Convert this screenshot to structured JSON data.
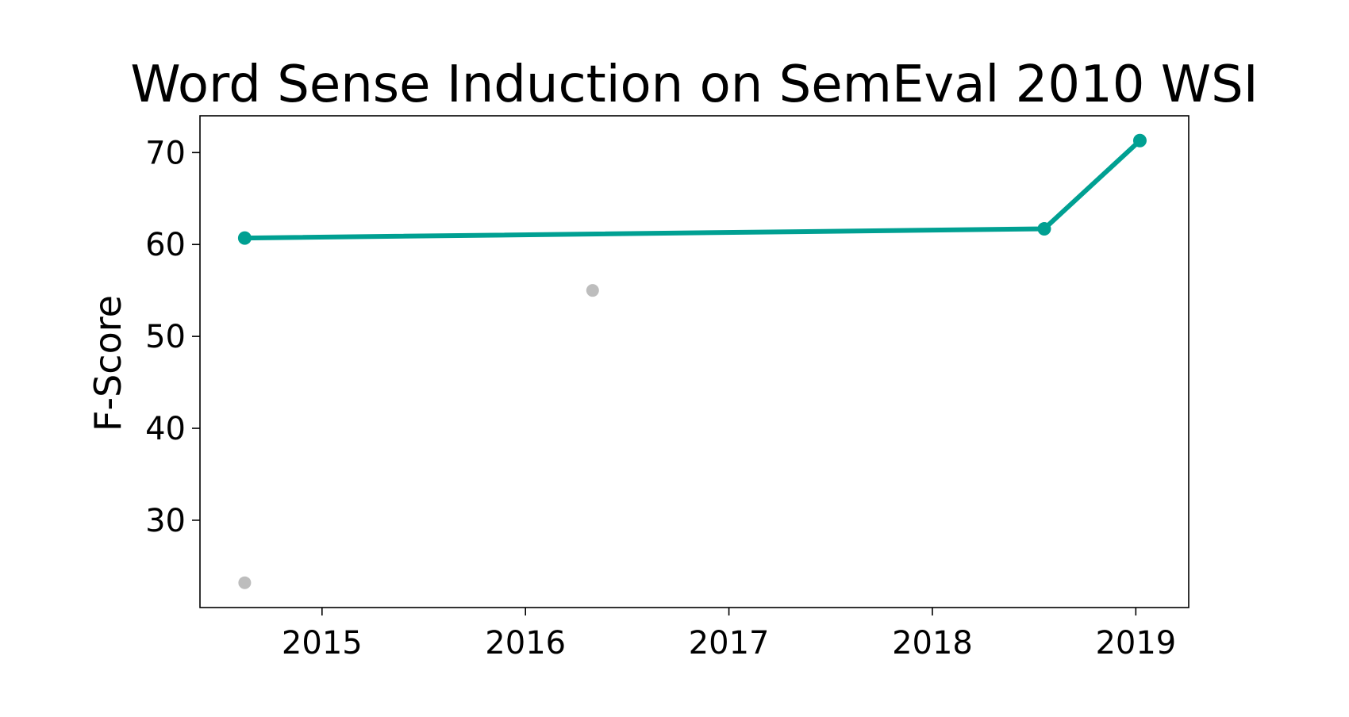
{
  "chart_data": {
    "type": "line",
    "title": "Word Sense Induction on SemEval 2010 WSI",
    "xlabel": "",
    "ylabel": "F-Score",
    "x_ticks": [
      2015,
      2016,
      2017,
      2018,
      2019
    ],
    "y_ticks": [
      30,
      40,
      50,
      60,
      70
    ],
    "xlim": [
      2014.4,
      2019.26
    ],
    "ylim": [
      20.5,
      74.0
    ],
    "grid": false,
    "series": [
      {
        "role": "state-of-the-art",
        "color": "#00a092",
        "points": [
          {
            "x": 2014.62,
            "y": 60.7
          },
          {
            "x": 2018.55,
            "y": 61.7
          },
          {
            "x": 2019.02,
            "y": 71.3
          }
        ]
      },
      {
        "role": "other",
        "color": "#bdbdbd",
        "points": [
          {
            "x": 2014.62,
            "y": 23.2
          },
          {
            "x": 2016.33,
            "y": 55.0
          }
        ]
      }
    ]
  }
}
